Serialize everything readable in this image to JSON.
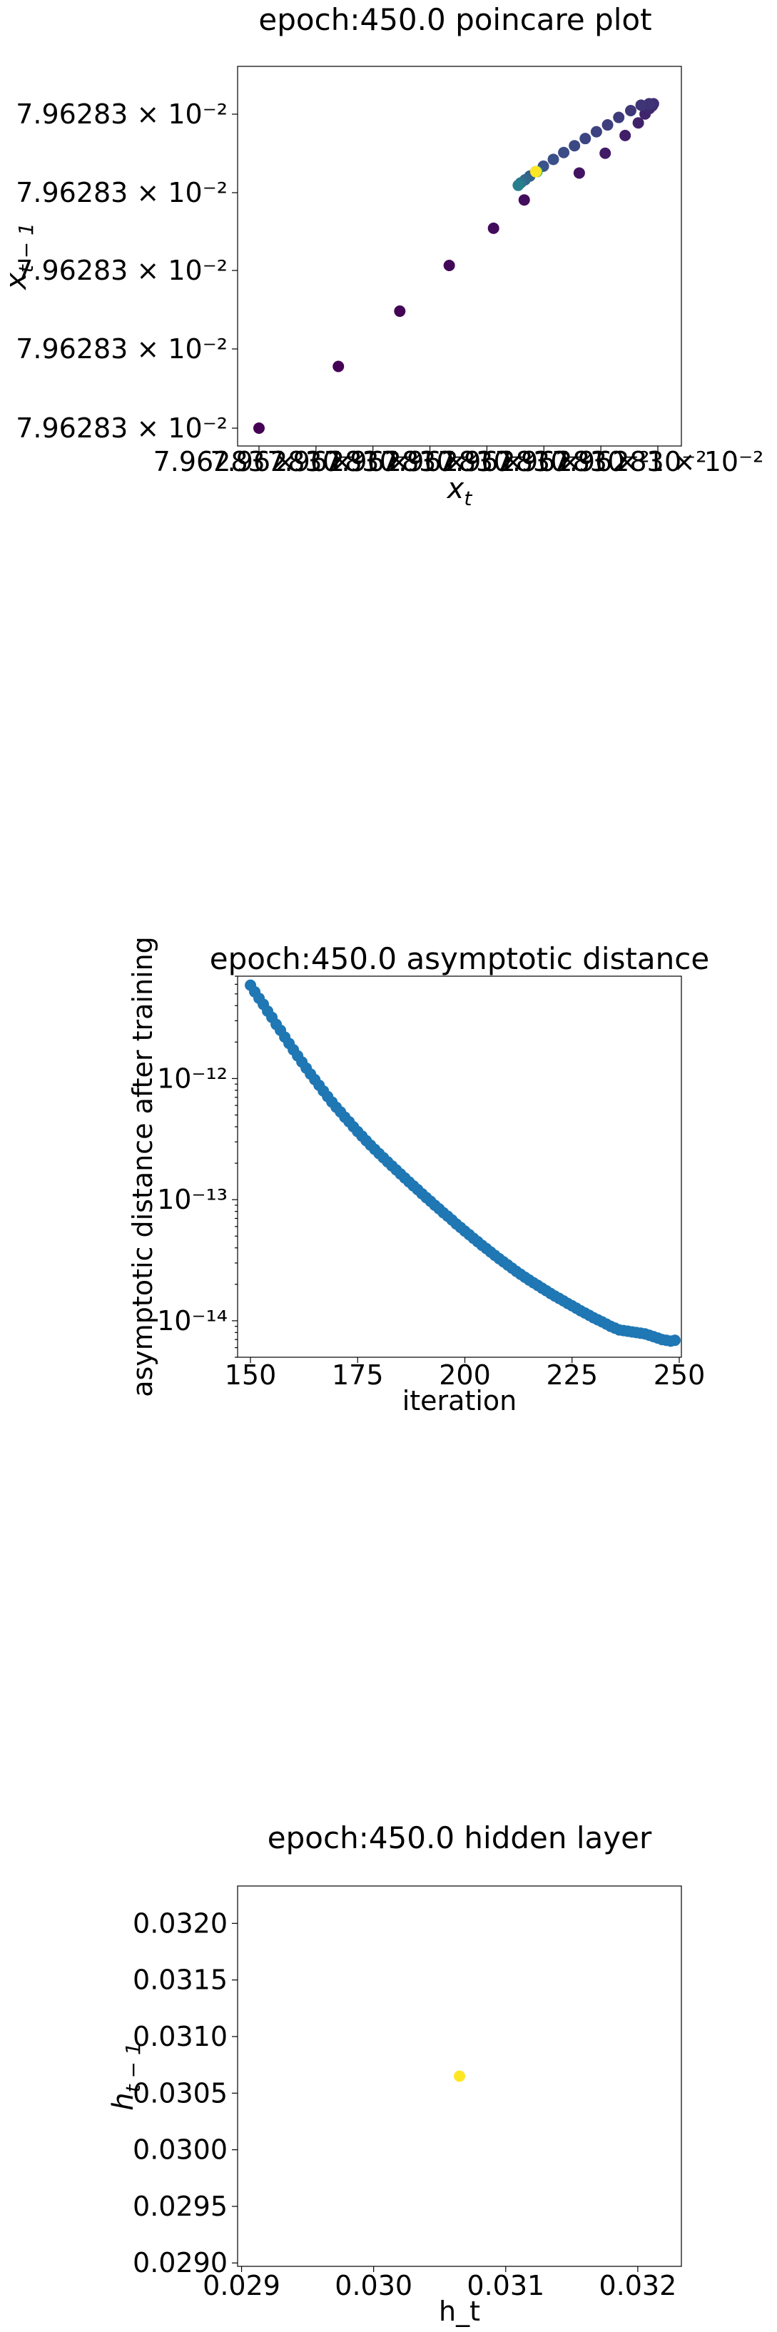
{
  "colors": {
    "viridis_dark": "#440154",
    "viridis_mid": "#3b528b",
    "viridis_teal": "#21918c",
    "viridis_green": "#5ec962",
    "viridis_yellow": "#fde725",
    "series_blue": "#1f77b4"
  },
  "chart_data": [
    {
      "type": "scatter",
      "title": "epoch:450.0 poincare plot",
      "xlabel": "x_t",
      "ylabel": "x_{t-1}",
      "xlim": [
        0,
        1
      ],
      "ylim": [
        0,
        1
      ],
      "x_tick_labels": [
        "7.96283 × 10⁻²",
        "7.96283 × 10⁻²",
        "7.96283 × 10⁻²",
        "7.96283 × 10⁻²",
        "7.96283 × 10⁻²",
        "7.96283 × 10⁻²",
        "7.96283 × 10⁻²",
        "7.96283 × 10⁻²"
      ],
      "y_tick_labels": [
        "7.96283 × 10⁻²",
        "7.96283 × 10⁻²",
        "7.96283 × 10⁻²",
        "7.96283 × 10⁻²",
        "7.96283 × 10⁻²"
      ],
      "colormap": "viridis",
      "points": [
        {
          "x": 0.0,
          "y": 0.0,
          "c": 0.0
        },
        {
          "x": 0.199,
          "y": 0.181,
          "c": 0.0
        },
        {
          "x": 0.353,
          "y": 0.343,
          "c": 0.01
        },
        {
          "x": 0.477,
          "y": 0.477,
          "c": 0.02
        },
        {
          "x": 0.588,
          "y": 0.586,
          "c": 0.03
        },
        {
          "x": 0.665,
          "y": 0.669,
          "c": 0.04
        },
        {
          "x": 0.803,
          "y": 0.748,
          "c": 0.06
        },
        {
          "x": 0.868,
          "y": 0.806,
          "c": 0.08
        },
        {
          "x": 0.918,
          "y": 0.858,
          "c": 0.09
        },
        {
          "x": 0.951,
          "y": 0.895,
          "c": 0.1
        },
        {
          "x": 0.968,
          "y": 0.921,
          "c": 0.11
        },
        {
          "x": 0.979,
          "y": 0.937,
          "c": 0.12
        },
        {
          "x": 0.986,
          "y": 0.945,
          "c": 0.13
        },
        {
          "x": 0.989,
          "y": 0.951,
          "c": 0.14
        },
        {
          "x": 0.978,
          "y": 0.951,
          "c": 0.15
        },
        {
          "x": 0.958,
          "y": 0.947,
          "c": 0.16
        },
        {
          "x": 0.932,
          "y": 0.931,
          "c": 0.17
        },
        {
          "x": 0.902,
          "y": 0.911,
          "c": 0.18
        },
        {
          "x": 0.874,
          "y": 0.889,
          "c": 0.19
        },
        {
          "x": 0.846,
          "y": 0.869,
          "c": 0.2
        },
        {
          "x": 0.818,
          "y": 0.849,
          "c": 0.21
        },
        {
          "x": 0.791,
          "y": 0.828,
          "c": 0.22
        },
        {
          "x": 0.764,
          "y": 0.808,
          "c": 0.23
        },
        {
          "x": 0.738,
          "y": 0.788,
          "c": 0.24
        },
        {
          "x": 0.713,
          "y": 0.768,
          "c": 0.25
        },
        {
          "x": 0.694,
          "y": 0.752,
          "c": 0.27
        },
        {
          "x": 0.679,
          "y": 0.739,
          "c": 0.3
        },
        {
          "x": 0.667,
          "y": 0.728,
          "c": 0.34
        },
        {
          "x": 0.656,
          "y": 0.719,
          "c": 0.38
        },
        {
          "x": 0.65,
          "y": 0.712,
          "c": 0.43
        },
        {
          "x": 0.697,
          "y": 0.752,
          "c": 0.6
        },
        {
          "x": 0.695,
          "y": 0.752,
          "c": 0.8
        },
        {
          "x": 0.694,
          "y": 0.752,
          "c": 1.0
        }
      ]
    },
    {
      "type": "scatter",
      "title": "epoch:450.0 asymptotic distance",
      "xlabel": "iteration",
      "ylabel": "asymptotic distance after training",
      "xlim": [
        147,
        250.5
      ],
      "ylim": [
        5e-15,
        7e-12
      ],
      "yscale": "log",
      "x_ticks": [
        150,
        175,
        200,
        225,
        250
      ],
      "x_tick_labels": [
        "150",
        "175",
        "200",
        "225",
        "250"
      ],
      "y_ticks": [
        1e-12,
        1e-13,
        1e-14
      ],
      "y_tick_labels": [
        "10⁻¹²",
        "10⁻¹³",
        "10⁻¹⁴"
      ],
      "x_start": 150,
      "x_end": 249,
      "values": [
        5.9e-12,
        5.2e-12,
        4.6e-12,
        4.1e-12,
        3.6e-12,
        3.2e-12,
        2.8e-12,
        2.5e-12,
        2.2e-12,
        1.95e-12,
        1.73e-12,
        1.54e-12,
        1.37e-12,
        1.22e-12,
        1.09e-12,
        9.8e-13,
        8.8e-13,
        7.9e-13,
        7.1e-13,
        6.4e-13,
        5.8e-13,
        5.3e-13,
        4.8e-13,
        4.4e-13,
        4e-13,
        3.65e-13,
        3.35e-13,
        3.07e-13,
        2.82e-13,
        2.6e-13,
        2.4e-13,
        2.22e-13,
        2.05e-13,
        1.9e-13,
        1.76e-13,
        1.63e-13,
        1.51e-13,
        1.4e-13,
        1.3e-13,
        1.21e-13,
        1.12e-13,
        1.04e-13,
        9.7e-14,
        9e-14,
        8.4e-14,
        7.8e-14,
        7.3e-14,
        6.8e-14,
        6.3e-14,
        5.9e-14,
        5.5e-14,
        5.15e-14,
        4.8e-14,
        4.5e-14,
        4.2e-14,
        3.95e-14,
        3.7e-14,
        3.47e-14,
        3.26e-14,
        3.07e-14,
        2.89e-14,
        2.72e-14,
        2.56e-14,
        2.42e-14,
        2.29e-14,
        2.17e-14,
        2.06e-14,
        1.96e-14,
        1.86e-14,
        1.77e-14,
        1.68e-14,
        1.6e-14,
        1.53e-14,
        1.46e-14,
        1.39e-14,
        1.33e-14,
        1.27e-14,
        1.21e-14,
        1.16e-14,
        1.11e-14,
        1.06e-14,
        1.02e-14,
        9.8e-15,
        9.4e-15,
        9e-15,
        8.7e-15,
        8.4e-15,
        8.3e-15,
        8.2e-15,
        8.1e-15,
        8e-15,
        7.9e-15,
        7.8e-15,
        7.6e-15,
        7.4e-15,
        7.2e-15,
        7e-15,
        6.9e-15,
        6.8e-15,
        6.9e-15
      ]
    },
    {
      "type": "scatter",
      "title": "epoch:450.0 hidden layer",
      "xlabel": "h_t",
      "ylabel": "h_{t-1}",
      "xlim": [
        0.02897,
        0.03233
      ],
      "ylim": [
        0.02897,
        0.03233
      ],
      "x_ticks": [
        0.029,
        0.03,
        0.031,
        0.032
      ],
      "x_tick_labels": [
        "0.029",
        "0.030",
        "0.031",
        "0.032"
      ],
      "y_ticks": [
        0.029,
        0.0295,
        0.03,
        0.0305,
        0.031,
        0.0315,
        0.032
      ],
      "y_tick_labels": [
        "0.0290",
        "0.0295",
        "0.0300",
        "0.0305",
        "0.0310",
        "0.0315",
        "0.0320"
      ],
      "points": [
        {
          "x": 0.03065,
          "y": 0.03065
        }
      ]
    }
  ]
}
